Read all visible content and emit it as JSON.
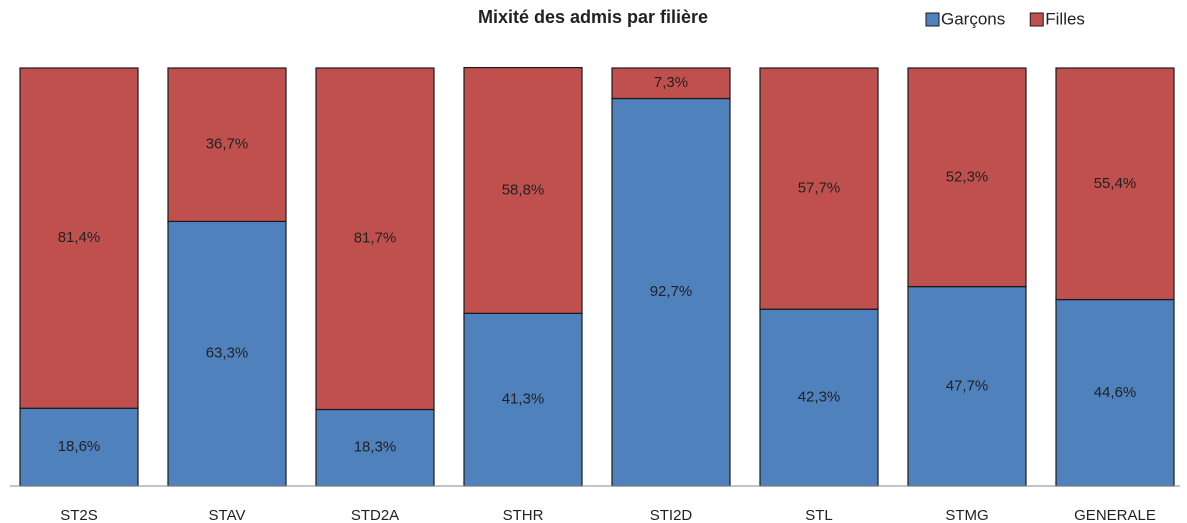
{
  "chart_data": {
    "type": "stacked_bar",
    "title": "Mixité des admis par filière",
    "categories": [
      "ST2S",
      "STAV",
      "STD2A",
      "STHR",
      "STI2D",
      "STL",
      "STMG",
      "GENERALE"
    ],
    "series": [
      {
        "name": "Garçons",
        "color": "#4f81bd",
        "values": [
          18.6,
          63.3,
          18.3,
          41.3,
          92.7,
          42.3,
          47.7,
          44.6
        ],
        "value_labels": [
          "18,6%",
          "63,3%",
          "18,3%",
          "41,3%",
          "92,7%",
          "42,3%",
          "47,7%",
          "44,6%"
        ]
      },
      {
        "name": "Filles",
        "color": "#c0504d",
        "values": [
          81.4,
          36.7,
          81.7,
          58.8,
          7.3,
          57.7,
          52.3,
          55.4
        ],
        "value_labels": [
          "81,4%",
          "36,7%",
          "81,7%",
          "58,8%",
          "7,3%",
          "57,7%",
          "52,3%",
          "55,4%"
        ]
      }
    ],
    "ylim": [
      0,
      100
    ],
    "legend": "top-right"
  }
}
